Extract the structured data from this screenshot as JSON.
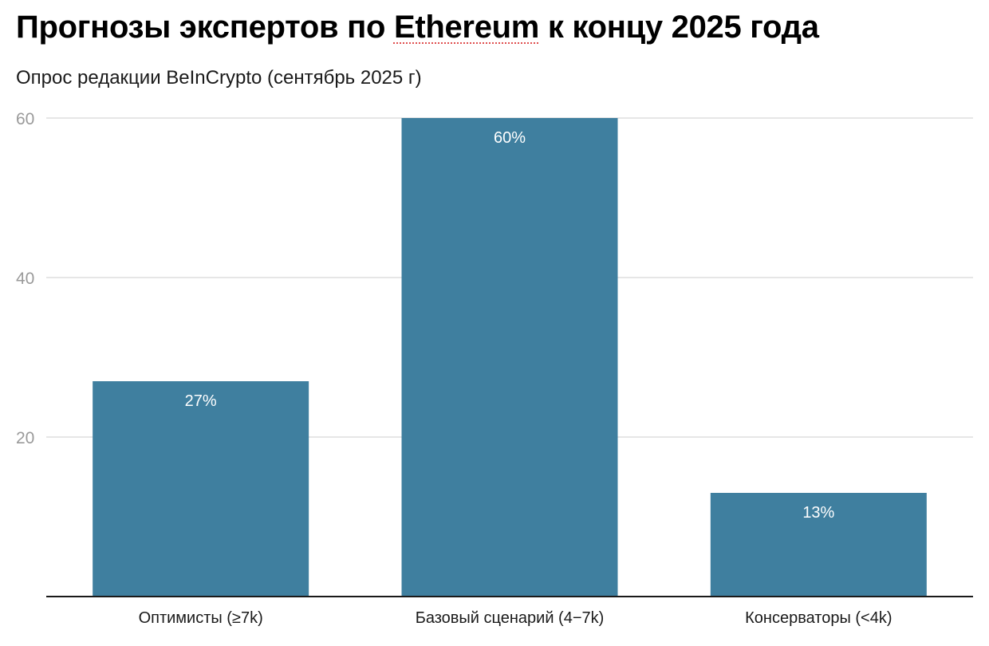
{
  "title_parts": {
    "before": "Прогнозы экспертов по ",
    "flagged": "Ethereum",
    "after": " к концу 2025 года"
  },
  "subtitle": "Опрос редакции BeInCrypto (сентябрь 2025 г)",
  "chart_data": {
    "type": "bar",
    "title": "Прогнозы экспертов по Ethereum к концу 2025 года",
    "subtitle": "Опрос редакции BeInCrypto (сентябрь 2025 г)",
    "categories": [
      "Оптимисты (≥7k)",
      "Базовый сценарий (4−7k)",
      "Консерваторы (<4k)"
    ],
    "values": [
      27,
      60,
      13
    ],
    "data_labels": [
      "27%",
      "60%",
      "13%"
    ],
    "xlabel": "",
    "ylabel": "",
    "ylim": [
      0,
      60
    ],
    "yticks": [
      20,
      40,
      60
    ],
    "grid": true,
    "bar_color": "#3f7f9f"
  }
}
